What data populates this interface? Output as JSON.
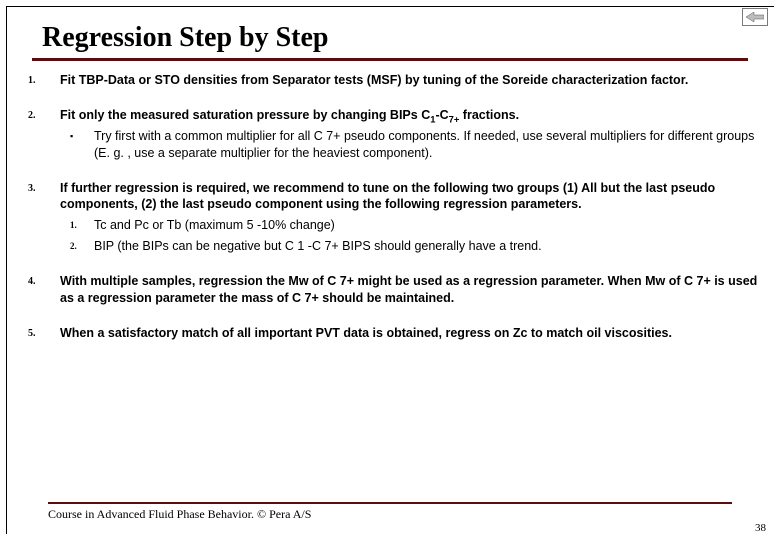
{
  "title": "Regression Step by Step",
  "items": [
    {
      "num": "1.",
      "text": "Fit TBP-Data or STO densities from Separator tests (MSF) by tuning of the Soreide characterization factor."
    },
    {
      "num": "2.",
      "text_html": "Fit only the measured saturation pressure by changing BIPs C<sub>1</sub>-C<sub>7+</sub> fractions.",
      "subs": [
        {
          "marker": "▪",
          "text": "Try first with a common multiplier for all C 7+ pseudo components. If needed, use several multipliers for different groups (E. g. , use a separate multiplier for the heaviest component)."
        }
      ]
    },
    {
      "num": "3.",
      "text": "If further regression is required, we recommend to tune on the following two groups (1) All but the last pseudo components, (2) the last pseudo component using the following regression parameters.",
      "subs": [
        {
          "marker": "1.",
          "text": "Tc and Pc or Tb (maximum 5 -10% change)"
        },
        {
          "marker": "2.",
          "text": "BIP (the BIPs can be negative but C 1 -C 7+ BIPS should generally have a trend."
        }
      ]
    },
    {
      "num": "4.",
      "text": "With multiple samples, regression the Mw of C 7+ might be used as a regression parameter. When Mw of C 7+ is used as a regression parameter the mass of C 7+ should be maintained."
    },
    {
      "num": "5.",
      "text": "When a satisfactory match of all important PVT data is obtained, regress on Zc to match oil viscosities."
    }
  ],
  "footer": "Course in Advanced Fluid Phase Behavior. © Pera A/S",
  "page": "38",
  "colors": {
    "accent": "#5b0d0d",
    "text": "#000000",
    "bg": "#ffffff"
  }
}
